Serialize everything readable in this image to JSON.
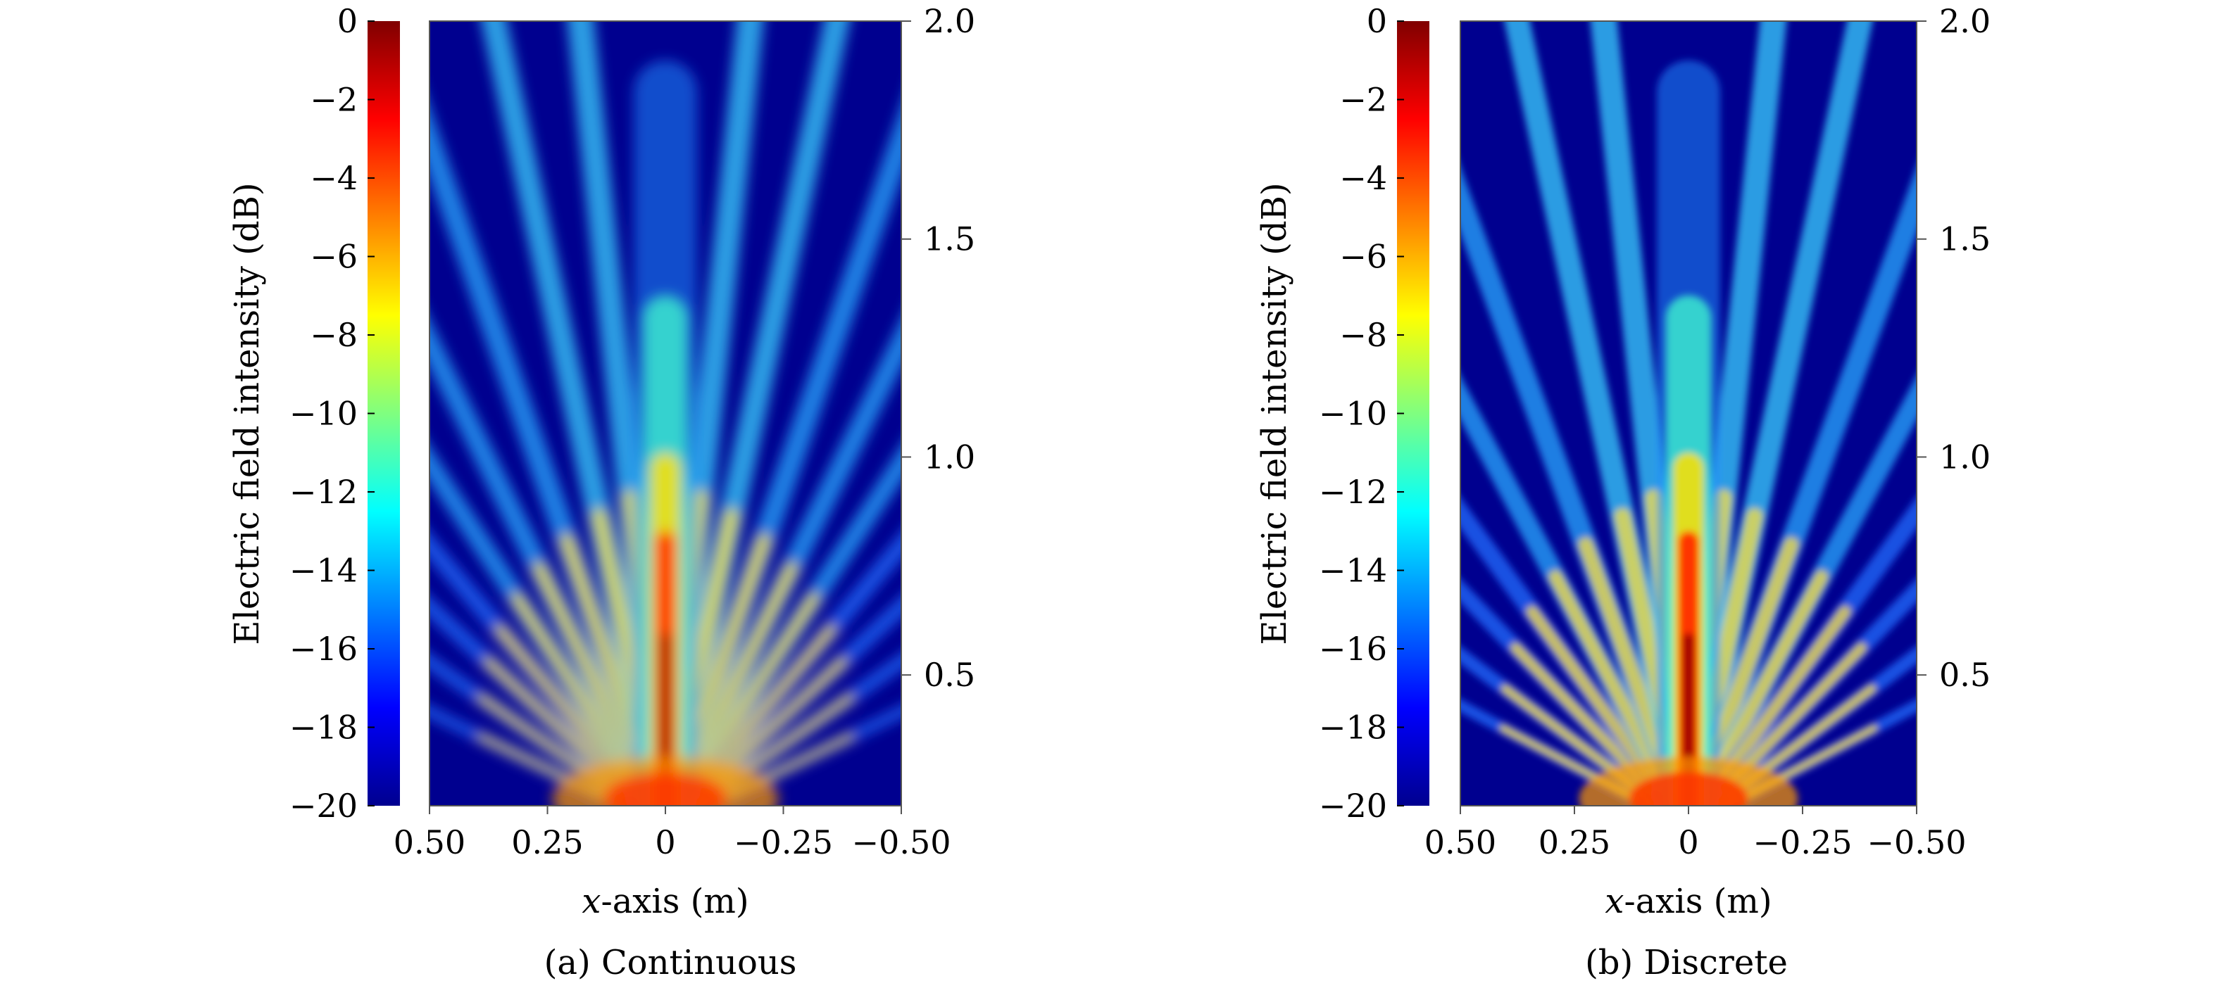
{
  "figure": {
    "panels": [
      {
        "id": "a",
        "caption": "(a) Continuous",
        "cbar_label": "Electric field intensity (dB)",
        "x_label_italic": "x",
        "x_label_rest": "-axis (m)"
      },
      {
        "id": "b",
        "caption": "(b) Discrete",
        "cbar_label": "Electric field intensity (dB)",
        "x_label_italic": "x",
        "x_label_rest": "-axis (m)"
      }
    ]
  },
  "chart_data": [
    {
      "type": "heatmap",
      "title": "(a) Continuous",
      "xlabel": "x-axis (m)",
      "ylabel": "",
      "colorbar_label": "Electric field intensity (dB)",
      "colormap": "jet",
      "colorbar_range": [
        -20,
        0
      ],
      "colorbar_ticks": [
        "0",
        "−2",
        "−4",
        "−6",
        "−8",
        "−10",
        "−12",
        "−14",
        "−16",
        "−18",
        "−20"
      ],
      "x_range": [
        0.5,
        -0.5
      ],
      "x_ticks": [
        "0.50",
        "0.25",
        "0",
        "−0.25",
        "−0.50"
      ],
      "y_range": [
        0.2,
        2.0
      ],
      "y_ticks": [
        "0.5",
        "1.0",
        "1.5",
        "2.0"
      ],
      "pattern": {
        "main_lobe_x": 0,
        "side_lobe_angles_deg": [
          -64,
          -55,
          -47,
          -40,
          -33,
          -26,
          -19,
          -12,
          -6,
          6,
          12,
          19,
          26,
          33,
          40,
          47,
          55,
          64
        ],
        "peak_region": "near-field at x≈0, y≈0.2–0.9 (−2 to 0 dB)"
      }
    },
    {
      "type": "heatmap",
      "title": "(b) Discrete",
      "xlabel": "x-axis (m)",
      "ylabel": "",
      "colorbar_label": "Electric field intensity (dB)",
      "colormap": "jet",
      "colorbar_range": [
        -20,
        0
      ],
      "colorbar_ticks": [
        "0",
        "−2",
        "−4",
        "−6",
        "−8",
        "−10",
        "−12",
        "−14",
        "−16",
        "−18",
        "−20"
      ],
      "x_range": [
        0.5,
        -0.5
      ],
      "x_ticks": [
        "0.50",
        "0.25",
        "0",
        "−0.25",
        "−0.50"
      ],
      "y_range": [
        0.2,
        2.0
      ],
      "y_ticks": [
        "0.5",
        "1.0",
        "1.5",
        "2.0"
      ],
      "pattern": {
        "main_lobe_x": 0,
        "side_lobe_angles_deg": [
          -62,
          -53,
          -44,
          -36,
          -28,
          -20,
          -12,
          -6,
          6,
          12,
          20,
          28,
          36,
          44,
          53,
          62
        ],
        "peak_region": "near-field at x≈0, y≈0.2–0.9 (−2 to 0 dB)"
      }
    }
  ]
}
